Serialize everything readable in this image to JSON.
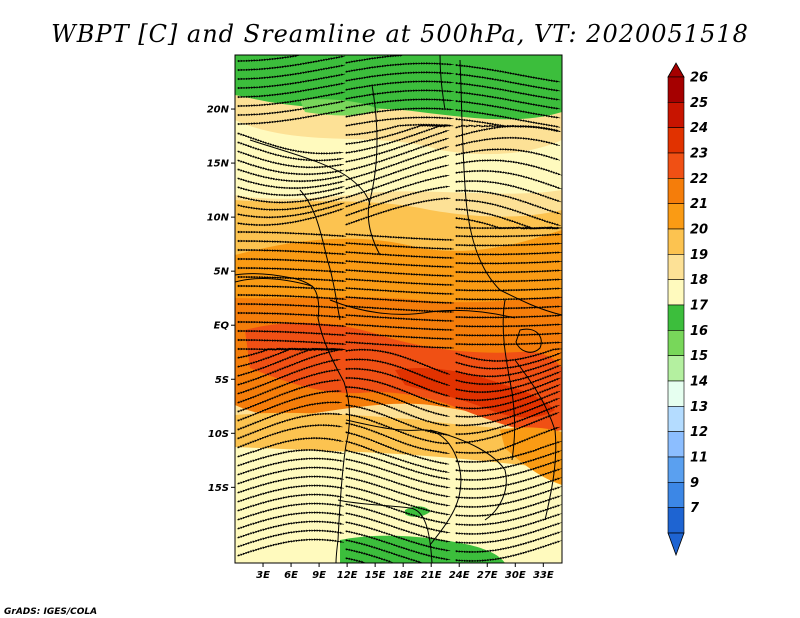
{
  "title": "WBPT [C] and Sreamline at 500hPa, VT: 2020051518",
  "credit": "GrADS: IGES/COLA",
  "map": {
    "lon_range": [
      0,
      35
    ],
    "lat_range": [
      -22,
      25
    ],
    "lat_ticks": [
      {
        "label": "20N",
        "lat": 20
      },
      {
        "label": "15N",
        "lat": 15
      },
      {
        "label": "10N",
        "lat": 10
      },
      {
        "label": "5N",
        "lat": 5
      },
      {
        "label": "EQ",
        "lat": 0
      },
      {
        "label": "5S",
        "lat": -5
      },
      {
        "label": "10S",
        "lat": -10
      },
      {
        "label": "15S",
        "lat": -15
      }
    ],
    "lon_ticks": [
      {
        "label": "3E",
        "lon": 3
      },
      {
        "label": "6E",
        "lon": 6
      },
      {
        "label": "9E",
        "lon": 9
      },
      {
        "label": "12E",
        "lon": 12
      },
      {
        "label": "15E",
        "lon": 15
      },
      {
        "label": "18E",
        "lon": 18
      },
      {
        "label": "21E",
        "lon": 21
      },
      {
        "label": "24E",
        "lon": 24
      },
      {
        "label": "27E",
        "lon": 27
      },
      {
        "label": "30E",
        "lon": 30
      },
      {
        "label": "33E",
        "lon": 33
      }
    ]
  },
  "colorbar": {
    "levels": [
      {
        "label": "26",
        "color": "#a50000"
      },
      {
        "label": "25",
        "color": "#c81400"
      },
      {
        "label": "24",
        "color": "#e13200"
      },
      {
        "label": "23",
        "color": "#f05014"
      },
      {
        "label": "22",
        "color": "#f57d0a"
      },
      {
        "label": "21",
        "color": "#fa9b14"
      },
      {
        "label": "20",
        "color": "#fcc350"
      },
      {
        "label": "19",
        "color": "#fde196"
      },
      {
        "label": "18",
        "color": "#fffabe"
      },
      {
        "label": "17",
        "color": "#3cbe3c"
      },
      {
        "label": "16",
        "color": "#78d75a"
      },
      {
        "label": "15",
        "color": "#b4f0a0"
      },
      {
        "label": "14",
        "color": "#e6fff0"
      },
      {
        "label": "13",
        "color": "#b4dcff"
      },
      {
        "label": "12",
        "color": "#8cbeff"
      },
      {
        "label": "11",
        "color": "#5aa0f0"
      },
      {
        "label": "9",
        "color": "#3c87e6"
      },
      {
        "label": "7",
        "color": "#1e64d2"
      }
    ],
    "top_arrow_color": "#a50000",
    "bottom_arrow_color": "#1e64d2"
  },
  "field_colors": {
    "green": "#3cbe3c",
    "light_green": "#78d75a",
    "cream": "#fffabe",
    "pale_yellow": "#fde196",
    "yellow": "#fcc350",
    "orange": "#fa9b14",
    "dark_orange": "#f57d0a",
    "red_orange": "#f05014",
    "red": "#e13200"
  }
}
